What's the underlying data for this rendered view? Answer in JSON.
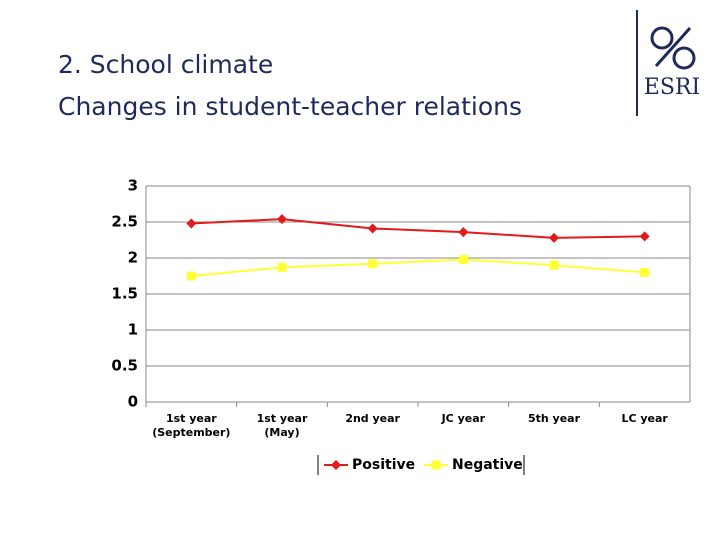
{
  "header": {
    "title": "2. School climate",
    "subtitle": "Changes in student-teacher relations",
    "logo": "ESRI"
  },
  "chart_data": {
    "type": "line",
    "categories": [
      "1st year (September)",
      "1st year (May)",
      "2nd year",
      "JC year",
      "5th year",
      "LC year"
    ],
    "series": [
      {
        "name": "Positive",
        "color": "#e31a1c",
        "marker": "diamond",
        "values": [
          2.48,
          2.54,
          2.41,
          2.36,
          2.28,
          2.3
        ]
      },
      {
        "name": "Negative",
        "color": "#ffff33",
        "marker": "square",
        "values": [
          1.75,
          1.87,
          1.92,
          1.98,
          1.9,
          1.8
        ]
      }
    ],
    "ylim": [
      0,
      3
    ],
    "yticks": [
      0,
      0.5,
      1,
      1.5,
      2,
      2.5,
      3
    ],
    "grid": true
  }
}
